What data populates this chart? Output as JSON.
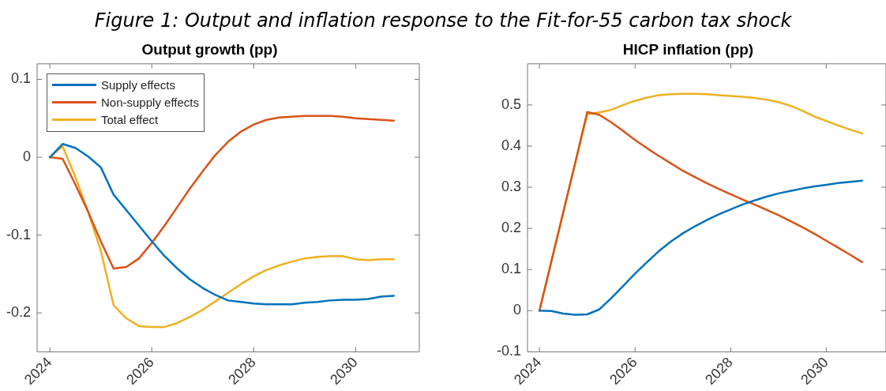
{
  "chart_data": [
    {
      "type": "line",
      "title": "Output growth (pp)",
      "annotations": [
        "Figure 1: Output and inflation response to the Fit-for-55 carbon tax shock"
      ],
      "x": [
        2024,
        2024.25,
        2024.5,
        2024.75,
        2025,
        2025.25,
        2025.5,
        2025.75,
        2026,
        2026.25,
        2026.5,
        2026.75,
        2027,
        2027.25,
        2027.5,
        2027.75,
        2028,
        2028.25,
        2028.5,
        2028.75,
        2029,
        2029.25,
        2029.5,
        2029.75,
        2030,
        2030.25,
        2030.5,
        2030.75
      ],
      "series": [
        {
          "name": "Supply effects",
          "color": "#0072bd",
          "values": [
            0,
            0.017,
            0.012,
            0.001,
            -0.013,
            -0.048,
            -0.068,
            -0.088,
            -0.108,
            -0.127,
            -0.143,
            -0.157,
            -0.168,
            -0.177,
            -0.184,
            -0.186,
            -0.188,
            -0.189,
            -0.189,
            -0.189,
            -0.187,
            -0.186,
            -0.184,
            -0.183,
            -0.183,
            -0.182,
            -0.179,
            -0.178
          ]
        },
        {
          "name": "Non-supply effects",
          "color": "#d95319",
          "values": [
            0,
            -0.002,
            -0.035,
            -0.07,
            -0.108,
            -0.143,
            -0.141,
            -0.13,
            -0.11,
            -0.088,
            -0.064,
            -0.04,
            -0.018,
            0.003,
            0.02,
            0.033,
            0.042,
            0.048,
            0.051,
            0.052,
            0.053,
            0.053,
            0.053,
            0.052,
            0.05,
            0.049,
            0.048,
            0.047
          ]
        },
        {
          "name": "Total effect",
          "color": "#edb120",
          "values": [
            0,
            0.014,
            -0.025,
            -0.07,
            -0.12,
            -0.19,
            -0.207,
            -0.217,
            -0.218,
            -0.218,
            -0.213,
            -0.205,
            -0.196,
            -0.185,
            -0.174,
            -0.163,
            -0.153,
            -0.145,
            -0.139,
            -0.134,
            -0.13,
            -0.128,
            -0.127,
            -0.127,
            -0.131,
            -0.132,
            -0.131,
            -0.131
          ]
        }
      ],
      "xlim": [
        2023.75,
        2031.25
      ],
      "xticks": [
        2024,
        2026,
        2028,
        2030
      ],
      "ylim": [
        -0.25,
        0.12
      ],
      "yticks": [
        -0.2,
        -0.1,
        0,
        0.1
      ],
      "grid": false,
      "legend": "top left",
      "marker": "none",
      "line_style": "solid"
    },
    {
      "type": "line",
      "title": "HICP inflation (pp)",
      "x": [
        2024,
        2024.25,
        2024.5,
        2024.75,
        2025,
        2025.25,
        2025.5,
        2025.75,
        2026,
        2026.25,
        2026.5,
        2026.75,
        2027,
        2027.25,
        2027.5,
        2027.75,
        2028,
        2028.25,
        2028.5,
        2028.75,
        2029,
        2029.25,
        2029.5,
        2029.75,
        2030,
        2030.25,
        2030.5,
        2030.75
      ],
      "series": [
        {
          "color": "#0072bd",
          "values": [
            0,
            -0.001,
            -0.007,
            -0.01,
            -0.009,
            0.003,
            0.03,
            0.06,
            0.09,
            0.118,
            0.145,
            0.168,
            0.188,
            0.205,
            0.22,
            0.234,
            0.246,
            0.258,
            0.268,
            0.277,
            0.285,
            0.291,
            0.297,
            0.302,
            0.306,
            0.31,
            0.313,
            0.316
          ]
        },
        {
          "color": "#d95319",
          "values": [
            0,
            0.12,
            0.24,
            0.36,
            0.483,
            0.476,
            0.458,
            0.437,
            0.415,
            0.395,
            0.376,
            0.358,
            0.34,
            0.325,
            0.31,
            0.296,
            0.283,
            0.27,
            0.258,
            0.245,
            0.232,
            0.218,
            0.203,
            0.187,
            0.17,
            0.153,
            0.136,
            0.118
          ]
        },
        {
          "color": "#edb120",
          "values": [
            0,
            0.12,
            0.24,
            0.36,
            0.477,
            0.482,
            0.488,
            0.5,
            0.51,
            0.518,
            0.524,
            0.526,
            0.527,
            0.527,
            0.526,
            0.524,
            0.522,
            0.52,
            0.517,
            0.513,
            0.507,
            0.498,
            0.486,
            0.472,
            0.461,
            0.45,
            0.44,
            0.431
          ]
        }
      ],
      "xlim": [
        2023.75,
        2031.25
      ],
      "xticks": [
        2024,
        2026,
        2028,
        2030
      ],
      "ylim": [
        -0.1,
        0.6
      ],
      "yticks": [
        -0.1,
        0,
        0.1,
        0.2,
        0.3,
        0.4,
        0.5
      ],
      "grid": false,
      "legend": false,
      "marker": "none",
      "line_style": "solid"
    }
  ]
}
